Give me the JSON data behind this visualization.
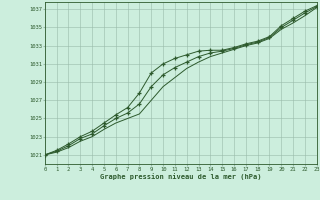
{
  "title": "Graphe pression niveau de la mer (hPa)",
  "bg_color": "#cceedd",
  "grid_color": "#99bbaa",
  "line_color": "#2d5a2d",
  "x_ticks": [
    0,
    1,
    2,
    3,
    4,
    5,
    6,
    7,
    8,
    9,
    10,
    11,
    12,
    13,
    14,
    15,
    16,
    17,
    18,
    19,
    20,
    21,
    22,
    23
  ],
  "y_ticks": [
    1021,
    1023,
    1025,
    1027,
    1029,
    1031,
    1033,
    1035,
    1037
  ],
  "ylim": [
    1020.0,
    1037.8
  ],
  "xlim": [
    0,
    23
  ],
  "series_upper": [
    1021.0,
    1021.5,
    1022.2,
    1023.0,
    1023.6,
    1024.5,
    1025.4,
    1026.2,
    1027.8,
    1030.0,
    1031.0,
    1031.6,
    1032.0,
    1032.4,
    1032.5,
    1032.5,
    1032.8,
    1033.2,
    1033.5,
    1034.0,
    1035.2,
    1036.0,
    1036.8,
    1037.4
  ],
  "series_lower": [
    1021.0,
    1021.3,
    1021.8,
    1022.5,
    1023.0,
    1023.8,
    1024.5,
    1025.0,
    1025.5,
    1027.0,
    1028.5,
    1029.5,
    1030.5,
    1031.2,
    1031.8,
    1032.2,
    1032.6,
    1033.0,
    1033.3,
    1033.8,
    1034.8,
    1035.5,
    1036.3,
    1037.2
  ],
  "series_mid": [
    1021.0,
    1021.4,
    1022.0,
    1022.8,
    1023.3,
    1024.2,
    1025.0,
    1025.6,
    1026.6,
    1028.5,
    1029.8,
    1030.6,
    1031.2,
    1031.8,
    1032.2,
    1032.4,
    1032.7,
    1033.1,
    1033.4,
    1033.9,
    1035.0,
    1035.8,
    1036.6,
    1037.3
  ]
}
